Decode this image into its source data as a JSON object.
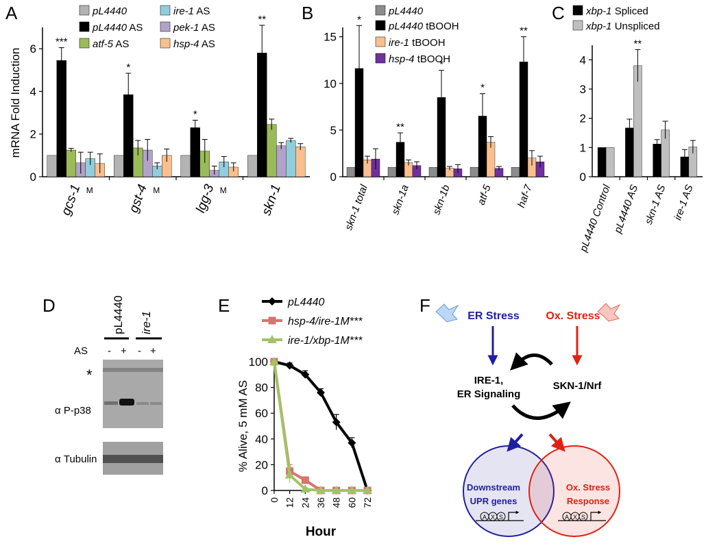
{
  "colors": {
    "gray": "#b3b3b3",
    "dark_gray": "#8c8c8c",
    "black": "#000000",
    "green": "#9bbb59",
    "light_blue": "#92cddc",
    "lavender": "#b3a2c7",
    "orange": "#fabf8f",
    "purple": "#7030a0",
    "light_gray": "#bfbfbf",
    "line_red": "#d9736f",
    "line_green": "#a3c266",
    "er_blue": "#1f1fa0",
    "ox_red": "#e02010"
  },
  "panels": {
    "A": {
      "label": "A",
      "ylabel": "mRNA Fold Induction"
    },
    "B": {
      "label": "B"
    },
    "C": {
      "label": "C"
    },
    "D": {
      "label": "D",
      "lane_groups": [
        "pL4440",
        "ire-1"
      ],
      "as_label": "AS",
      "signs": [
        "-",
        "+",
        "-",
        "+"
      ],
      "star": "*",
      "band_labels": [
        "α P-p38",
        "α Tubulin"
      ]
    },
    "E": {
      "label": "E"
    },
    "F": {
      "label": "F",
      "er_stress": "ER Stress",
      "ox_stress": "Ox. Stress",
      "ire1_line1": "IRE-1,",
      "ire1_line2": "ER Signaling",
      "skn1": "SKN-1/Nrf",
      "circle_left_line1": "Downstream",
      "circle_left_line2": "UPR genes",
      "circle_right_line1": "Ox. Stress",
      "circle_right_line2": "Response",
      "promoter_letters": [
        "A",
        "X",
        "S"
      ]
    }
  },
  "chart_data": [
    {
      "panel": "A",
      "type": "bar",
      "ylabel": "mRNA Fold Induction",
      "ylim": [
        0,
        7
      ],
      "yticks": [
        0,
        2,
        4,
        6
      ],
      "categories": [
        "gcs-1",
        "gst-4",
        "lgg-3",
        "skn-1"
      ],
      "category_marks": [
        "M",
        "M",
        "M",
        ""
      ],
      "legend_position": "top",
      "series": [
        {
          "name": "pL4440",
          "color_key": "gray",
          "values": [
            1,
            1,
            1,
            1
          ],
          "errors": [
            0,
            0,
            0,
            0
          ]
        },
        {
          "name": "pL4440 AS",
          "color_key": "black",
          "values": [
            5.45,
            3.85,
            2.3,
            5.8
          ],
          "errors": [
            0.6,
            1.0,
            0.35,
            1.3
          ]
        },
        {
          "name": "atf-5 AS",
          "color_key": "green",
          "values": [
            1.25,
            1.35,
            1.2,
            2.45
          ],
          "errors": [
            0.08,
            0.35,
            0.55,
            0.25
          ]
        },
        {
          "name": "pek-1 AS",
          "color_key": "lavender",
          "values": [
            0.65,
            1.25,
            0.3,
            1.45
          ],
          "errors": [
            0.5,
            0.5,
            0.2,
            0.15
          ]
        },
        {
          "name": "ire-1 AS",
          "color_key": "light_blue",
          "values": [
            0.85,
            0.5,
            0.7,
            1.7
          ],
          "errors": [
            0.3,
            0.15,
            0.25,
            0.1
          ]
        },
        {
          "name": "hsp-4 AS",
          "color_key": "orange",
          "values": [
            0.62,
            1.0,
            0.45,
            1.4
          ],
          "errors": [
            0.45,
            0.3,
            0.2,
            0.15
          ]
        }
      ],
      "significance": [
        "***",
        "*",
        "*",
        "**"
      ]
    },
    {
      "panel": "B",
      "type": "bar",
      "ylim": [
        0,
        16
      ],
      "yticks": [
        0,
        5,
        10,
        15
      ],
      "categories": [
        "skn-1 total",
        "skn-1a",
        "skn-1b",
        "atf-5",
        "haf-7"
      ],
      "legend_position": "top",
      "series": [
        {
          "name": "pL4440",
          "color_key": "dark_gray",
          "values": [
            1,
            1,
            1,
            1,
            1
          ],
          "errors": [
            0,
            0,
            0,
            0,
            0
          ]
        },
        {
          "name": "pL4440 tBOOH",
          "color_key": "black",
          "values": [
            11.6,
            3.7,
            8.5,
            6.5,
            12.3
          ],
          "errors": [
            4.6,
            1.0,
            2.9,
            2.4,
            2.7
          ]
        },
        {
          "name": "ire-1 tBOOH",
          "color_key": "orange",
          "values": [
            1.8,
            1.5,
            0.9,
            3.7,
            2.0
          ],
          "errors": [
            0.4,
            0.3,
            0.2,
            0.6,
            0.8
          ]
        },
        {
          "name": "hsp-4 tBOOH",
          "color_key": "purple",
          "values": [
            1.9,
            1.2,
            0.85,
            0.9,
            1.6
          ],
          "errors": [
            1.1,
            0.4,
            0.45,
            0.2,
            0.6
          ]
        }
      ],
      "significance": [
        "*",
        "**",
        "*",
        "*",
        "**"
      ]
    },
    {
      "panel": "C",
      "type": "bar",
      "ylim": [
        0,
        4.5
      ],
      "yticks": [
        0,
        1,
        2,
        3,
        4
      ],
      "categories": [
        "pL4440 Control",
        "pL4440 AS",
        "skn-1 AS",
        "ire-1 AS"
      ],
      "legend_position": "top",
      "series": [
        {
          "name": "xbp-1 Spliced",
          "color_key": "black",
          "values": [
            1,
            1.67,
            1.12,
            0.68
          ],
          "errors": [
            0,
            0.3,
            0.15,
            0.25
          ]
        },
        {
          "name": "xbp-1 Unspliced",
          "color_key": "light_gray",
          "values": [
            1,
            3.8,
            1.6,
            1.02
          ],
          "errors": [
            0,
            0.55,
            0.3,
            0.22
          ]
        }
      ],
      "significance": [
        "",
        "**",
        "",
        ""
      ]
    },
    {
      "panel": "E",
      "type": "line",
      "xlabel": "Hour",
      "ylabel": "% Alive, 5 mM AS",
      "xlim": [
        0,
        72
      ],
      "ylim": [
        0,
        100
      ],
      "xticks": [
        0,
        12,
        24,
        36,
        48,
        60,
        72
      ],
      "yticks": [
        0,
        20,
        40,
        60,
        80,
        100
      ],
      "legend_position": "top-left",
      "series": [
        {
          "name": "pL4440",
          "color_key": "black",
          "marker": "diamond",
          "x": [
            0,
            12,
            24,
            36,
            48,
            60,
            72
          ],
          "y": [
            100,
            97,
            90,
            76,
            53,
            37,
            0
          ],
          "errors": [
            0,
            2,
            3,
            3,
            6,
            4,
            0
          ]
        },
        {
          "name": "hsp-4/ire-1M***",
          "color_key": "line_red",
          "marker": "square",
          "x": [
            0,
            12,
            24,
            36,
            48,
            60,
            72
          ],
          "y": [
            100,
            15,
            8,
            0,
            0,
            0,
            0
          ],
          "errors": [
            0,
            5,
            2,
            0,
            0,
            0,
            0
          ]
        },
        {
          "name": "ire-1/xbp-1M***",
          "color_key": "line_green",
          "marker": "triangle",
          "x": [
            0,
            12,
            24,
            36,
            48,
            60,
            72
          ],
          "y": [
            100,
            12,
            1,
            0,
            0,
            0,
            0
          ],
          "errors": [
            0,
            6,
            1,
            0,
            0,
            0,
            0
          ]
        }
      ]
    }
  ]
}
